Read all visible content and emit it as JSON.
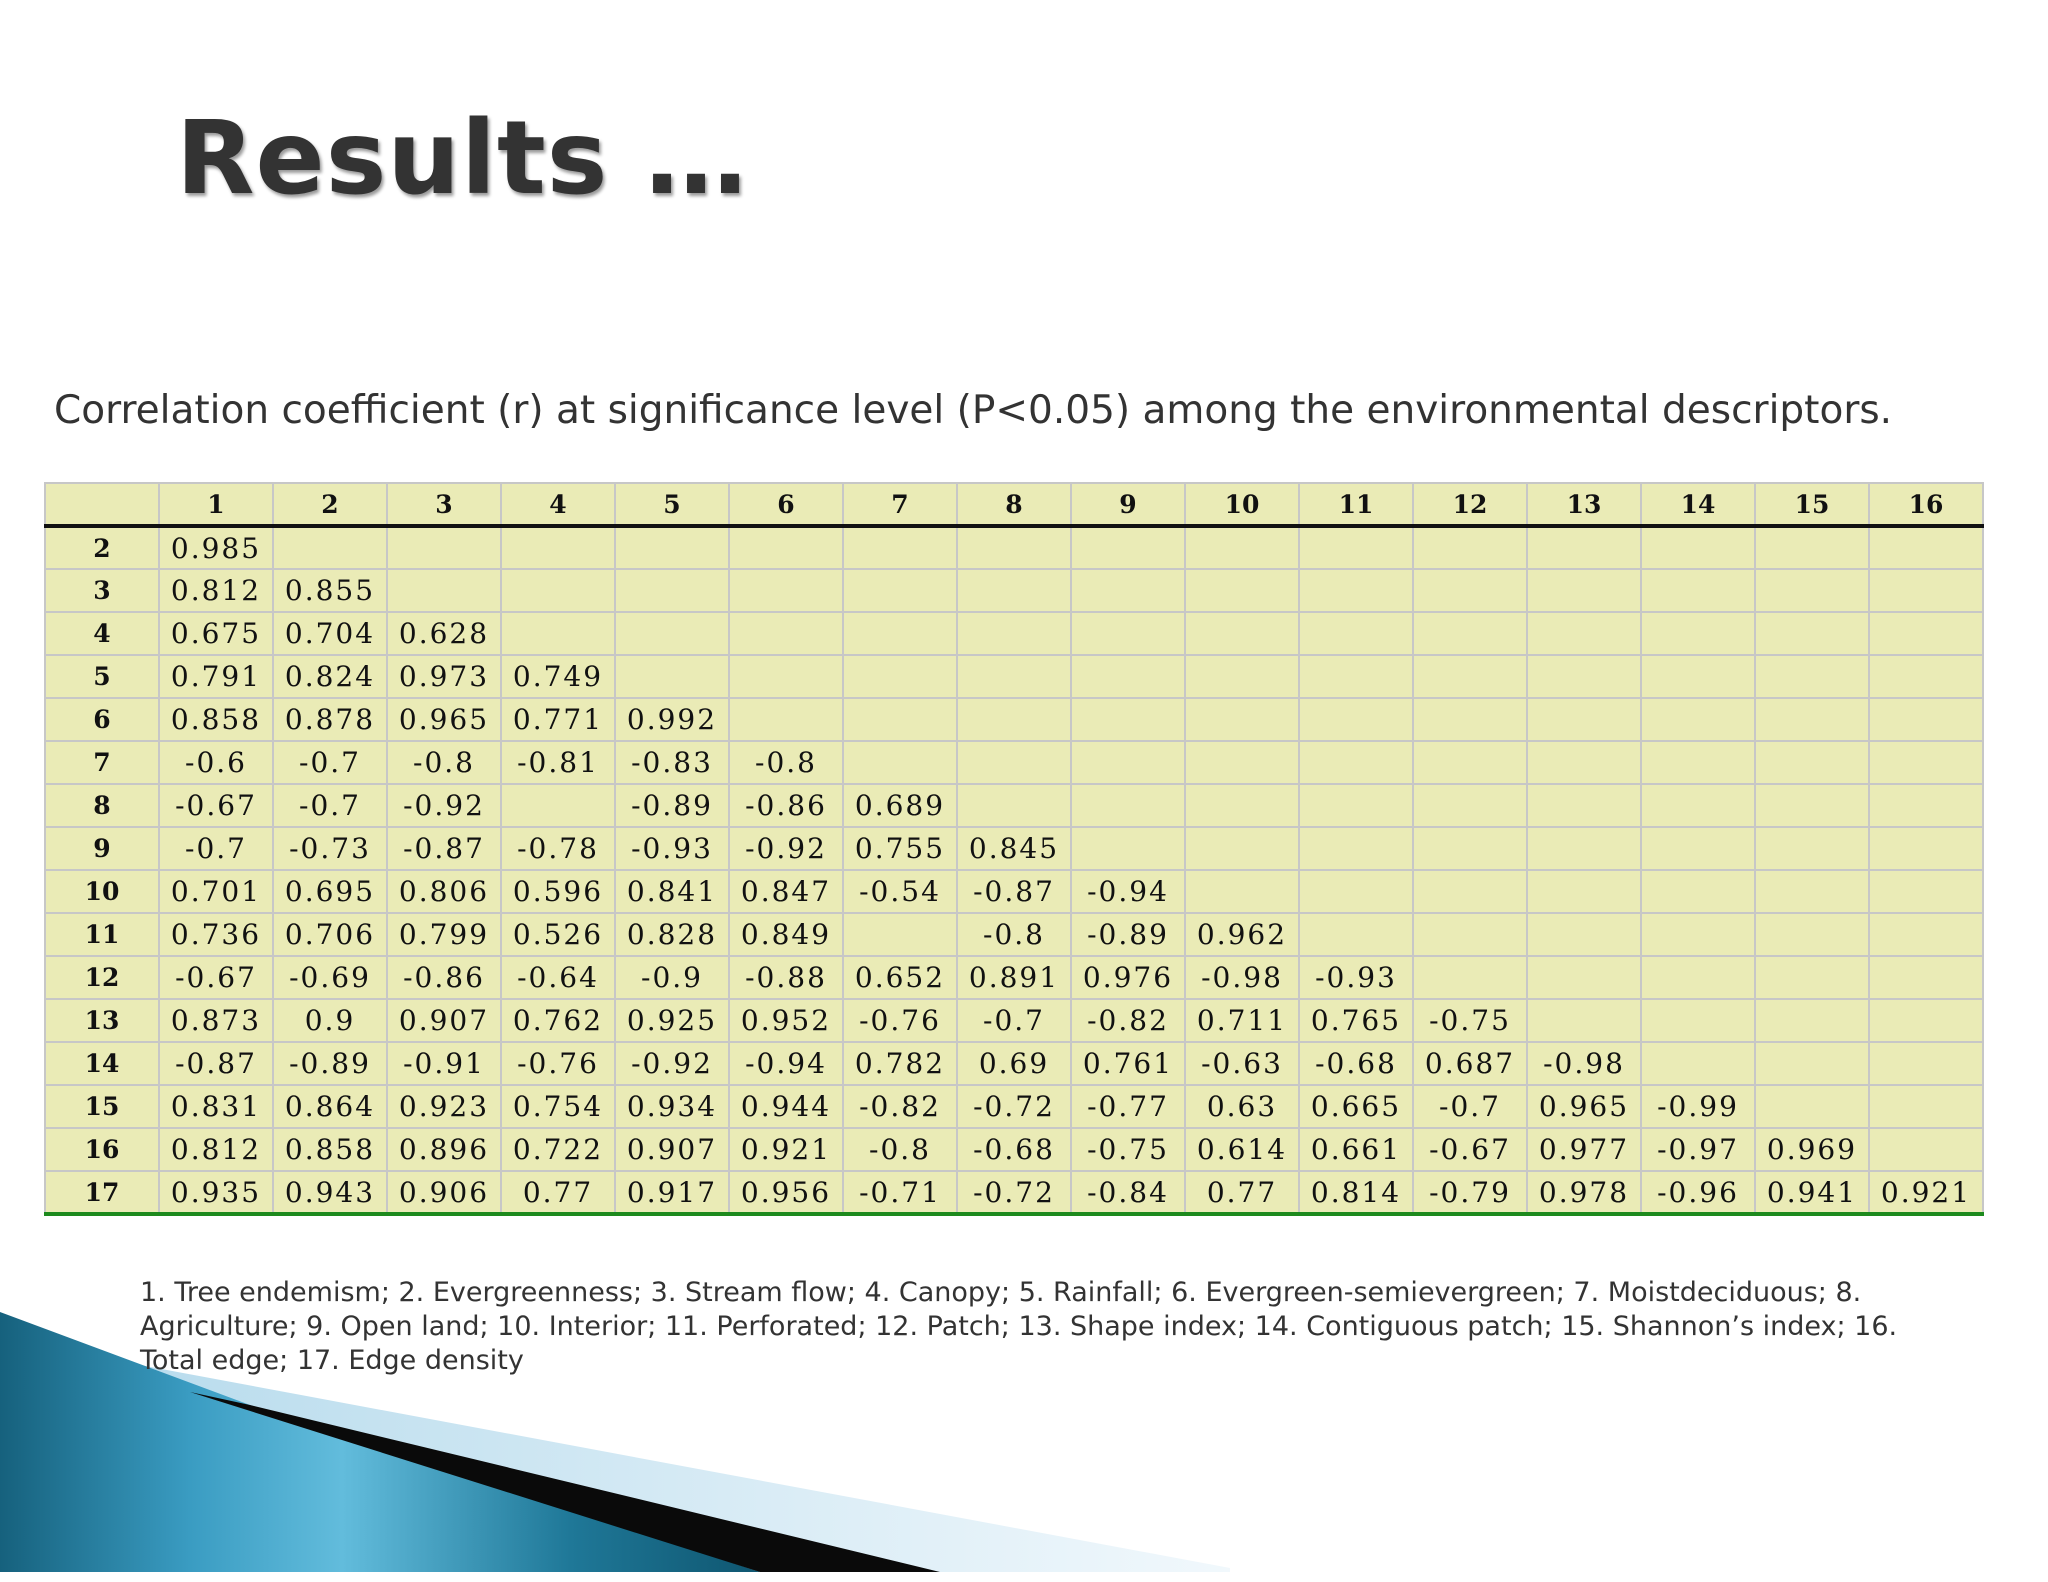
{
  "slide": {
    "title": "Results …",
    "caption": "Correlation coefficient (r) at significance level (P<0.05) among the environmental descriptors."
  },
  "table": {
    "columns": [
      "1",
      "2",
      "3",
      "4",
      "5",
      "6",
      "7",
      "8",
      "9",
      "10",
      "11",
      "12",
      "13",
      "14",
      "15",
      "16"
    ],
    "rows": [
      {
        "label": "2",
        "values": [
          "0.985"
        ]
      },
      {
        "label": "3",
        "values": [
          "0.812",
          "0.855"
        ]
      },
      {
        "label": "4",
        "values": [
          "0.675",
          "0.704",
          "0.628"
        ]
      },
      {
        "label": "5",
        "values": [
          "0.791",
          "0.824",
          "0.973",
          "0.749"
        ]
      },
      {
        "label": "6",
        "values": [
          "0.858",
          "0.878",
          "0.965",
          "0.771",
          "0.992"
        ]
      },
      {
        "label": "7",
        "values": [
          "-0.6",
          "-0.7",
          "-0.8",
          "-0.81",
          "-0.83",
          "-0.8"
        ]
      },
      {
        "label": "8",
        "values": [
          "-0.67",
          "-0.7",
          "-0.92",
          "",
          "-0.89",
          "-0.86",
          "0.689"
        ]
      },
      {
        "label": "9",
        "values": [
          "-0.7",
          "-0.73",
          "-0.87",
          "-0.78",
          "-0.93",
          "-0.92",
          "0.755",
          "0.845"
        ]
      },
      {
        "label": "10",
        "values": [
          "0.701",
          "0.695",
          "0.806",
          "0.596",
          "0.841",
          "0.847",
          "-0.54",
          "-0.87",
          "-0.94"
        ]
      },
      {
        "label": "11",
        "values": [
          "0.736",
          "0.706",
          "0.799",
          "0.526",
          "0.828",
          "0.849",
          "",
          "-0.8",
          "-0.89",
          "0.962"
        ]
      },
      {
        "label": "12",
        "values": [
          "-0.67",
          "-0.69",
          "-0.86",
          "-0.64",
          "-0.9",
          "-0.88",
          "0.652",
          "0.891",
          "0.976",
          "-0.98",
          "-0.93"
        ]
      },
      {
        "label": "13",
        "values": [
          "0.873",
          "0.9",
          "0.907",
          "0.762",
          "0.925",
          "0.952",
          "-0.76",
          "-0.7",
          "-0.82",
          "0.711",
          "0.765",
          "-0.75"
        ]
      },
      {
        "label": "14",
        "values": [
          "-0.87",
          "-0.89",
          "-0.91",
          "-0.76",
          "-0.92",
          "-0.94",
          "0.782",
          "0.69",
          "0.761",
          "-0.63",
          "-0.68",
          "0.687",
          "-0.98"
        ]
      },
      {
        "label": "15",
        "values": [
          "0.831",
          "0.864",
          "0.923",
          "0.754",
          "0.934",
          "0.944",
          "-0.82",
          "-0.72",
          "-0.77",
          "0.63",
          "0.665",
          "-0.7",
          "0.965",
          "-0.99"
        ]
      },
      {
        "label": "16",
        "values": [
          "0.812",
          "0.858",
          "0.896",
          "0.722",
          "0.907",
          "0.921",
          "-0.8",
          "-0.68",
          "-0.75",
          "0.614",
          "0.661",
          "-0.67",
          "0.977",
          "-0.97",
          "0.969"
        ]
      },
      {
        "label": "17",
        "values": [
          "0.935",
          "0.943",
          "0.906",
          "0.77",
          "0.917",
          "0.956",
          "-0.71",
          "-0.72",
          "-0.84",
          "0.77",
          "0.814",
          "-0.79",
          "0.978",
          "-0.96",
          "0.941",
          "0.921"
        ]
      }
    ]
  },
  "legend": "1. Tree endemism; 2. Evergreenness; 3. Stream flow; 4. Canopy; 5. Rainfall; 6. Evergreen-semievergreen; 7. Moistdeciduous; 8. Agriculture; 9. Open land; 10. Interior; 11. Perforated; 12. Patch; 13. Shape index; 14. Contiguous patch; 15. Shannon’s index; 16. Total edge; 17. Edge density",
  "colors": {
    "cell_fill": "#eaebb6",
    "grid": "#c7c7c7",
    "header_rule": "#111111",
    "bottom_rule": "#1d8a1d",
    "decor_dark": "#1a6f8c",
    "decor_light": "#5fb8d8"
  }
}
